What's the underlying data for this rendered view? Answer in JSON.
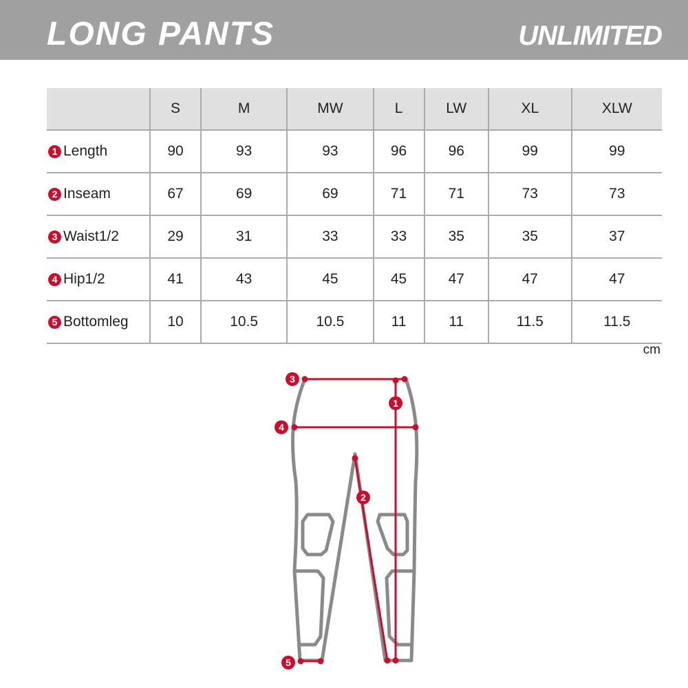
{
  "header": {
    "title": "LONG PANTS",
    "brand": "UNLIMITED"
  },
  "table": {
    "columns": [
      "S",
      "M",
      "MW",
      "L",
      "LW",
      "XL",
      "XLW"
    ],
    "rows": [
      {
        "num": "1",
        "label": "Length",
        "values": [
          "90",
          "93",
          "93",
          "96",
          "96",
          "99",
          "99"
        ]
      },
      {
        "num": "2",
        "label": "Inseam",
        "values": [
          "67",
          "69",
          "69",
          "71",
          "71",
          "73",
          "73"
        ]
      },
      {
        "num": "3",
        "label": "Waist1/2",
        "values": [
          "29",
          "31",
          "33",
          "33",
          "35",
          "35",
          "37"
        ]
      },
      {
        "num": "4",
        "label": "Hip1/2",
        "values": [
          "41",
          "43",
          "45",
          "45",
          "47",
          "47",
          "47"
        ]
      },
      {
        "num": "5",
        "label": "Bottomleg",
        "values": [
          "10",
          "10.5",
          "10.5",
          "11",
          "11",
          "11.5",
          "11.5"
        ]
      }
    ],
    "unit": "cm"
  },
  "diagram": {
    "markers": [
      "1",
      "2",
      "3",
      "4",
      "5"
    ]
  },
  "colors": {
    "banner": "#a0a0a0",
    "accent": "#c8102e",
    "header_bg": "#e0e0e0"
  }
}
